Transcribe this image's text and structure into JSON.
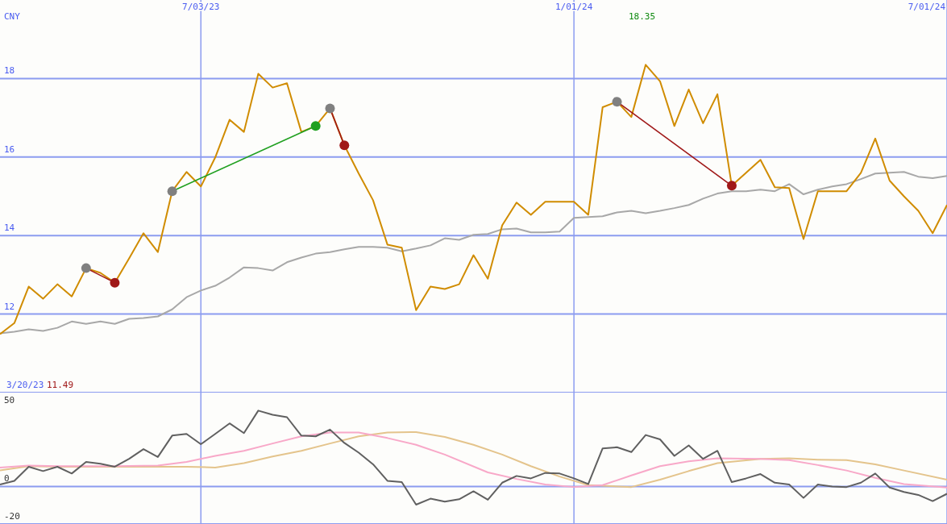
{
  "chart_data": [
    {
      "type": "line",
      "ylabel": "CNY",
      "x": [
        "2023-03-27",
        "2023-04-03",
        "2023-04-10",
        "2023-04-17",
        "2023-04-24",
        "2023-05-01",
        "2023-05-08",
        "2023-05-15",
        "2023-05-22",
        "2023-05-29",
        "2023-06-05",
        "2023-06-12",
        "2023-06-19",
        "2023-06-26",
        "2023-07-03",
        "2023-07-10",
        "2023-07-17",
        "2023-07-24",
        "2023-07-31",
        "2023-08-07",
        "2023-08-14",
        "2023-08-21",
        "2023-08-28",
        "2023-09-04",
        "2023-09-11",
        "2023-09-18",
        "2023-09-25",
        "2023-10-02",
        "2023-10-09",
        "2023-10-16",
        "2023-10-23",
        "2023-10-30",
        "2023-11-06",
        "2023-11-13",
        "2023-11-20",
        "2023-11-27",
        "2023-12-04",
        "2023-12-11",
        "2023-12-18",
        "2023-12-25",
        "2024-01-01",
        "2024-01-08",
        "2024-01-15",
        "2024-01-22",
        "2024-01-29",
        "2024-02-05",
        "2024-02-12",
        "2024-02-19",
        "2024-02-26",
        "2024-03-04",
        "2024-03-11",
        "2024-03-18",
        "2024-03-25",
        "2024-04-01",
        "2024-04-08",
        "2024-04-15",
        "2024-04-22",
        "2024-04-29",
        "2024-05-06",
        "2024-05-13",
        "2024-05-20",
        "2024-05-27",
        "2024-06-03",
        "2024-06-10",
        "2024-06-17",
        "2024-06-24",
        "2024-07-01"
      ],
      "series": [
        {
          "color": "#a8a8a8",
          "values": [
            11.51,
            11.55,
            11.61,
            11.57,
            11.65,
            11.81,
            11.75,
            11.81,
            11.75,
            11.88,
            11.9,
            11.94,
            12.12,
            12.43,
            12.6,
            12.72,
            12.93,
            13.19,
            13.17,
            13.11,
            13.32,
            13.44,
            13.54,
            13.58,
            13.65,
            13.71,
            13.71,
            13.69,
            13.6,
            13.67,
            13.75,
            13.93,
            13.89,
            14.02,
            14.04,
            14.16,
            14.18,
            14.08,
            14.08,
            14.1,
            14.45,
            14.47,
            14.49,
            14.59,
            14.63,
            14.57,
            14.63,
            14.7,
            14.78,
            14.94,
            15.07,
            15.13,
            15.13,
            15.17,
            15.13,
            15.31,
            15.05,
            15.17,
            15.25,
            15.31,
            15.44,
            15.58,
            15.6,
            15.62,
            15.5,
            15.46,
            15.52
          ]
        },
        {
          "color": "#d08c00",
          "values": [
            11.49,
            11.77,
            12.7,
            12.39,
            12.76,
            12.45,
            13.17,
            13.05,
            12.8,
            13.42,
            14.06,
            13.58,
            15.13,
            15.62,
            15.25,
            15.99,
            16.95,
            16.64,
            18.12,
            17.77,
            17.88,
            16.64,
            16.79,
            17.24,
            16.3,
            15.58,
            14.9,
            13.77,
            13.69,
            12.1,
            12.7,
            12.64,
            12.76,
            13.5,
            12.9,
            14.26,
            14.84,
            14.53,
            14.86,
            14.86,
            14.86,
            14.53,
            17.27,
            17.41,
            17.02,
            18.35,
            17.93,
            16.79,
            17.72,
            16.86,
            17.6,
            15.27,
            15.6,
            15.93,
            15.23,
            15.21,
            13.91,
            15.13,
            15.13,
            15.13,
            15.6,
            16.47,
            15.4,
            15.0,
            14.63,
            14.06,
            14.78
          ]
        },
        {
          "color": "#a01818",
          "marker": "circle",
          "x": [
            "2023-05-08",
            "2023-05-22"
          ],
          "values": [
            13.17,
            12.8
          ],
          "colors": [
            "#808080",
            "#a01818"
          ]
        },
        {
          "color": "#20a020",
          "marker": "circle",
          "x": [
            "2023-06-19",
            "2023-08-28"
          ],
          "values": [
            15.13,
            16.79
          ],
          "colors": [
            "#808080",
            "#20a020"
          ]
        },
        {
          "color": "#a01818",
          "marker": "circle",
          "x": [
            "2023-09-04",
            "2023-09-11"
          ],
          "values": [
            17.24,
            16.3
          ],
          "colors": [
            "#808080",
            "#a01818"
          ]
        },
        {
          "color": "#a01818",
          "marker": "circle",
          "x": [
            "2024-01-22",
            "2024-03-18"
          ],
          "values": [
            17.41,
            15.27
          ],
          "colors": [
            "#808080",
            "#a01818"
          ]
        }
      ],
      "xlim": [
        "2023-03-27",
        "2024-07-01"
      ],
      "xticks": [
        {
          "value": "2023-07-03",
          "label": "7/03/23"
        },
        {
          "value": "2024-01-01",
          "label": "1/01/24"
        },
        {
          "value": "2024-07-01",
          "label": "7/01/24"
        }
      ],
      "ylim": [
        10,
        20
      ],
      "yticks": [
        12,
        14,
        16,
        18
      ],
      "grid": true,
      "annotations": [
        "3/20/23",
        "11.49",
        "18.35"
      ]
    },
    {
      "type": "line",
      "tick_labels": "y",
      "xlim": [
        "2023-03-27",
        "2024-07-01"
      ],
      "xticks": [
        {
          "value": "2023-07-03",
          "label": null
        },
        {
          "value": "2024-01-01",
          "label": null
        },
        {
          "value": "2024-07-01",
          "label": null
        }
      ],
      "ylim": [
        -20,
        50
      ],
      "yticks": [
        -20,
        0,
        50
      ],
      "grid": "x",
      "ref_lines": [
        {
          "axis": "y",
          "value": 0,
          "color": "#8c9cf0"
        }
      ],
      "series": [
        {
          "color": "#e4c48c",
          "x": [
            "2023-03-27",
            "2023-04-10",
            "2023-04-24",
            "2023-05-22",
            "2023-06-26",
            "2023-07-10",
            "2023-07-24",
            "2023-08-07",
            "2023-08-21",
            "2023-09-04",
            "2023-09-18",
            "2023-10-02",
            "2023-10-16",
            "2023-10-30",
            "2023-11-13",
            "2023-11-27",
            "2023-12-11",
            "2023-12-25",
            "2024-01-08",
            "2024-01-29",
            "2024-02-12",
            "2024-02-26",
            "2024-03-11",
            "2024-04-01",
            "2024-04-15",
            "2024-04-29",
            "2024-05-13",
            "2024-05-27",
            "2024-06-10",
            "2024-07-01"
          ],
          "values": [
            8.5,
            10.8,
            10.5,
            10.5,
            10.5,
            10.1,
            12.4,
            16.0,
            19.0,
            22.9,
            26.7,
            28.7,
            29.0,
            26.4,
            22.2,
            17.0,
            10.8,
            5.3,
            0.7,
            -0.3,
            3.6,
            8.2,
            12.4,
            14.7,
            15.0,
            14.3,
            14.0,
            11.8,
            8.5,
            3.6
          ]
        },
        {
          "color": "#f8a8c8",
          "x": [
            "2023-03-27",
            "2023-04-10",
            "2023-04-24",
            "2023-05-22",
            "2023-06-12",
            "2023-06-26",
            "2023-07-10",
            "2023-07-24",
            "2023-08-07",
            "2023-08-21",
            "2023-09-04",
            "2023-09-18",
            "2023-10-02",
            "2023-10-16",
            "2023-10-30",
            "2023-11-20",
            "2023-12-04",
            "2023-12-18",
            "2024-01-01",
            "2024-01-15",
            "2024-01-29",
            "2024-02-12",
            "2024-02-26",
            "2024-03-11",
            "2024-04-01",
            "2024-04-15",
            "2024-04-29",
            "2024-05-13",
            "2024-05-27",
            "2024-06-10",
            "2024-07-01"
          ],
          "values": [
            10.1,
            11.1,
            10.8,
            10.8,
            11.1,
            13.1,
            16.3,
            19.0,
            22.9,
            26.7,
            28.7,
            28.7,
            25.8,
            22.2,
            17.0,
            7.5,
            4.0,
            1.0,
            -0.3,
            0.7,
            5.9,
            10.8,
            13.4,
            15.0,
            14.7,
            14.0,
            11.4,
            8.5,
            4.6,
            1.3,
            -0.6
          ]
        },
        {
          "color": "#606060",
          "x": [
            "2023-03-27",
            "2023-04-03",
            "2023-04-10",
            "2023-04-17",
            "2023-04-24",
            "2023-05-01",
            "2023-05-08",
            "2023-05-15",
            "2023-05-22",
            "2023-05-29",
            "2023-06-05",
            "2023-06-12",
            "2023-06-19",
            "2023-06-26",
            "2023-07-03",
            "2023-07-10",
            "2023-07-17",
            "2023-07-24",
            "2023-07-31",
            "2023-08-07",
            "2023-08-14",
            "2023-08-21",
            "2023-08-28",
            "2023-09-04",
            "2023-09-11",
            "2023-09-18",
            "2023-09-25",
            "2023-10-02",
            "2023-10-09",
            "2023-10-16",
            "2023-10-23",
            "2023-10-30",
            "2023-11-06",
            "2023-11-13",
            "2023-11-20",
            "2023-11-27",
            "2023-12-04",
            "2023-12-11",
            "2023-12-18",
            "2023-12-25",
            "2024-01-01",
            "2024-01-08",
            "2024-01-15",
            "2024-01-22",
            "2024-01-29",
            "2024-02-05",
            "2024-02-12",
            "2024-02-19",
            "2024-02-26",
            "2024-03-04",
            "2024-03-11",
            "2024-03-18",
            "2024-03-25",
            "2024-04-01",
            "2024-04-08",
            "2024-04-15",
            "2024-04-22",
            "2024-04-29",
            "2024-05-06",
            "2024-05-13",
            "2024-05-20",
            "2024-05-27",
            "2024-06-03",
            "2024-06-10",
            "2024-06-17",
            "2024-06-24",
            "2024-07-01"
          ],
          "values": [
            1.0,
            3.0,
            10.5,
            8.2,
            10.5,
            6.9,
            13.1,
            12.1,
            10.5,
            14.7,
            19.9,
            15.7,
            27.1,
            28.0,
            22.5,
            28.0,
            33.6,
            28.4,
            40.4,
            38.2,
            36.9,
            27.1,
            26.7,
            30.3,
            23.2,
            18.0,
            11.8,
            3.0,
            2.3,
            -9.7,
            -6.5,
            -8.1,
            -6.8,
            -2.6,
            -7.1,
            2.0,
            5.6,
            4.3,
            7.2,
            6.9,
            4.3,
            1.3,
            20.3,
            20.9,
            18.3,
            27.4,
            25.1,
            16.3,
            21.9,
            14.7,
            19.0,
            2.3,
            4.3,
            6.6,
            2.0,
            1.0,
            -6.1,
            1.0,
            0.0,
            -0.3,
            2.0,
            6.9,
            -0.6,
            -2.9,
            -4.5,
            -7.8,
            -3.9
          ]
        }
      ]
    }
  ]
}
